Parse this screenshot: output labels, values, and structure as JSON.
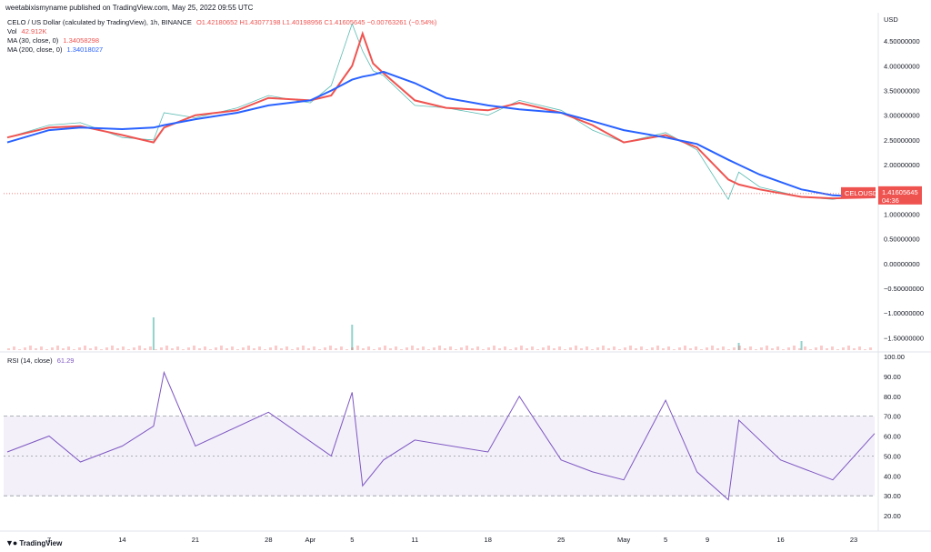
{
  "header": {
    "published": "weetabixismyname published on TradingView.com, May 25, 2022 09:55 UTC"
  },
  "legend": {
    "symbol": "CELO / US Dollar (calculated by TradingView), 1h, BINANCE",
    "ohlc": "O1.42180652  H1.43077198  L1.40198956  C1.41605645  −0.00763261 (−0.54%)",
    "vol_label": "Vol",
    "vol_value": "42.912K",
    "ma30_label": "MA (30, close, 0)",
    "ma30_value": "1.34058298",
    "ma200_label": "MA (200, close, 0)",
    "ma200_value": "1.34018027",
    "rsi_label": "RSI (14, close)",
    "rsi_value": "61.29"
  },
  "price_axis": {
    "currency": "USD",
    "ticks": [
      "4.50000000",
      "4.00000000",
      "3.50000000",
      "3.00000000",
      "2.50000000",
      "2.00000000",
      "1.50000000",
      "1.00000000",
      "0.50000000",
      "0.00000000",
      "−0.50000000",
      "−1.00000000",
      "−1.50000000"
    ],
    "current_label": "CELOUSD",
    "current_price": "1.41605645",
    "countdown": "04:36"
  },
  "rsi_axis": {
    "ticks": [
      "100.00",
      "90.00",
      "80.00",
      "70.00",
      "60.00",
      "50.00",
      "40.00",
      "30.00",
      "20.00"
    ]
  },
  "time_axis": {
    "labels": [
      "7",
      "14",
      "21",
      "28",
      "Apr",
      "5",
      "11",
      "18",
      "25",
      "May",
      "5",
      "9",
      "16",
      "23"
    ]
  },
  "brand": {
    "name": "TradingView"
  },
  "colors": {
    "ma30": "#ef5350",
    "ma200": "#2962ff",
    "rsi": "#7e57c2",
    "up": "#26a69a",
    "down": "#ef5350"
  },
  "chart_data": {
    "type": "line",
    "title": "CELO / US Dollar (calculated by TradingView), 1h, BINANCE",
    "x": [
      "Mar 3",
      "Mar 7",
      "Mar 10",
      "Mar 14",
      "Mar 17",
      "Mar 18",
      "Mar 21",
      "Mar 25",
      "Mar 28",
      "Apr 1",
      "Apr 3",
      "Apr 5",
      "Apr 6",
      "Apr 7",
      "Apr 8",
      "Apr 11",
      "Apr 14",
      "Apr 18",
      "Apr 21",
      "Apr 25",
      "Apr 28",
      "May 1",
      "May 5",
      "May 8",
      "May 11",
      "May 12",
      "May 14",
      "May 18",
      "May 21",
      "May 25"
    ],
    "series": [
      {
        "name": "CELOUSD",
        "values": [
          2.55,
          2.8,
          2.85,
          2.55,
          2.5,
          3.05,
          2.95,
          3.15,
          3.4,
          3.25,
          3.6,
          4.85,
          4.3,
          3.9,
          3.8,
          3.2,
          3.15,
          3.0,
          3.3,
          3.1,
          2.7,
          2.45,
          2.65,
          2.3,
          1.3,
          1.85,
          1.55,
          1.35,
          1.3,
          1.42
        ]
      },
      {
        "name": "MA (30, close, 0)",
        "values": [
          2.55,
          2.75,
          2.78,
          2.6,
          2.45,
          2.75,
          3.0,
          3.1,
          3.35,
          3.3,
          3.4,
          4.0,
          4.65,
          4.05,
          3.85,
          3.3,
          3.15,
          3.1,
          3.25,
          3.05,
          2.8,
          2.45,
          2.6,
          2.35,
          1.7,
          1.6,
          1.5,
          1.35,
          1.32,
          1.34
        ]
      },
      {
        "name": "MA (200, close, 0)",
        "values": [
          2.45,
          2.7,
          2.75,
          2.72,
          2.75,
          2.8,
          2.92,
          3.05,
          3.2,
          3.3,
          3.5,
          3.72,
          3.78,
          3.82,
          3.88,
          3.65,
          3.35,
          3.2,
          3.12,
          3.05,
          2.88,
          2.7,
          2.55,
          2.42,
          2.1,
          2.0,
          1.8,
          1.5,
          1.38,
          1.34
        ]
      }
    ],
    "ylabel": "USD",
    "ylim": [
      -1.75,
      5.0
    ],
    "rsi": {
      "name": "RSI (14, close)",
      "upper_band": 70,
      "lower_band": 30,
      "ylim": [
        15,
        100
      ],
      "x": [
        "Mar 3",
        "Mar 7",
        "Mar 10",
        "Mar 14",
        "Mar 17",
        "Mar 18",
        "Mar 21",
        "Mar 28",
        "Apr 3",
        "Apr 5",
        "Apr 6",
        "Apr 8",
        "Apr 11",
        "Apr 18",
        "Apr 21",
        "Apr 25",
        "Apr 28",
        "May 1",
        "May 5",
        "May 8",
        "May 11",
        "May 12",
        "May 16",
        "May 21",
        "May 25"
      ],
      "values": [
        52,
        60,
        47,
        55,
        65,
        92,
        55,
        72,
        50,
        82,
        35,
        48,
        58,
        52,
        80,
        48,
        42,
        38,
        78,
        42,
        28,
        68,
        48,
        38,
        61.29
      ]
    },
    "volume_spikes": [
      {
        "x": "Mar 17",
        "value": 0.9
      },
      {
        "x": "Apr 5",
        "value": 0.7
      },
      {
        "x": "May 12",
        "value": 0.2
      },
      {
        "x": "May 18",
        "value": 0.25
      }
    ]
  }
}
